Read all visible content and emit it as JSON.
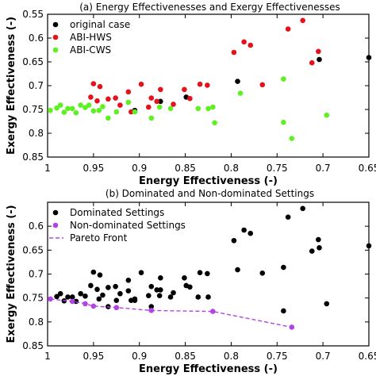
{
  "chart_data": [
    {
      "type": "scatter",
      "title": "(a) Energy Effectivenesses and Exergy Effectivenesses",
      "xlabel": "Energy Effectiveness (-)",
      "ylabel": "Exergy Effectiveness (-)",
      "xlim": [
        1.0,
        0.65
      ],
      "ylim": [
        0.85,
        0.55
      ],
      "x_reversed": true,
      "y_reversed": true,
      "xticks": [
        1,
        0.95,
        0.9,
        0.85,
        0.8,
        0.75,
        0.7,
        0.65
      ],
      "xtick_labels": [
        "1",
        "0.95",
        "0.9",
        "0.85",
        "0.8",
        "0.75",
        "0.7",
        "0.65"
      ],
      "yticks": [
        0.55,
        0.6,
        0.65,
        0.7,
        0.75,
        0.8,
        0.85
      ],
      "ytick_labels": [
        "0.55",
        "0.6",
        "0.65",
        "0.7",
        "0.75",
        "0.8",
        "0.85"
      ],
      "grid": false,
      "legend_position": "top-left",
      "series": [
        {
          "name": "original case",
          "color": "#000000",
          "points": [
            [
              0.905,
              0.752
            ],
            [
              0.877,
              0.733
            ],
            [
              0.849,
              0.724
            ],
            [
              0.793,
              0.691
            ],
            [
              0.704,
              0.645
            ],
            [
              0.65,
              0.641
            ]
          ]
        },
        {
          "name": "ABI-HWS",
          "color": "#e3121b",
          "points": [
            [
              0.953,
              0.724
            ],
            [
              0.95,
              0.696
            ],
            [
              0.946,
              0.732
            ],
            [
              0.943,
              0.702
            ],
            [
              0.934,
              0.728
            ],
            [
              0.926,
              0.726
            ],
            [
              0.921,
              0.741
            ],
            [
              0.912,
              0.713
            ],
            [
              0.909,
              0.755
            ],
            [
              0.898,
              0.697
            ],
            [
              0.89,
              0.745
            ],
            [
              0.887,
              0.726
            ],
            [
              0.881,
              0.733
            ],
            [
              0.877,
              0.708
            ],
            [
              0.863,
              0.739
            ],
            [
              0.851,
              0.708
            ],
            [
              0.845,
              0.727
            ],
            [
              0.834,
              0.697
            ],
            [
              0.826,
              0.699
            ],
            [
              0.797,
              0.63
            ],
            [
              0.786,
              0.608
            ],
            [
              0.779,
              0.615
            ],
            [
              0.766,
              0.698
            ],
            [
              0.738,
              0.581
            ],
            [
              0.722,
              0.563
            ],
            [
              0.712,
              0.652
            ],
            [
              0.705,
              0.628
            ]
          ]
        },
        {
          "name": "ABI-CWS",
          "color": "#5ff022",
          "points": [
            [
              0.997,
              0.752
            ],
            [
              0.99,
              0.747
            ],
            [
              0.986,
              0.741
            ],
            [
              0.982,
              0.756
            ],
            [
              0.978,
              0.748
            ],
            [
              0.973,
              0.748
            ],
            [
              0.969,
              0.757
            ],
            [
              0.964,
              0.741
            ],
            [
              0.959,
              0.746
            ],
            [
              0.955,
              0.741
            ],
            [
              0.95,
              0.753
            ],
            [
              0.944,
              0.752
            ],
            [
              0.94,
              0.744
            ],
            [
              0.934,
              0.768
            ],
            [
              0.925,
              0.755
            ],
            [
              0.912,
              0.735
            ],
            [
              0.905,
              0.755
            ],
            [
              0.887,
              0.768
            ],
            [
              0.878,
              0.745
            ],
            [
              0.866,
              0.748
            ],
            [
              0.836,
              0.748
            ],
            [
              0.825,
              0.748
            ],
            [
              0.82,
              0.745
            ],
            [
              0.818,
              0.778
            ],
            [
              0.79,
              0.716
            ],
            [
              0.743,
              0.686
            ],
            [
              0.743,
              0.777
            ],
            [
              0.734,
              0.811
            ],
            [
              0.696,
              0.762
            ]
          ]
        }
      ]
    },
    {
      "type": "scatter",
      "title": "(b) Dominated and Non-dominated Settings",
      "xlabel": "Energy Effectiveness (-)",
      "ylabel": "Exergy Effectiveness (-)",
      "xlim": [
        1.0,
        0.65
      ],
      "ylim": [
        0.85,
        0.55
      ],
      "x_reversed": true,
      "y_reversed": true,
      "xticks": [
        1,
        0.95,
        0.9,
        0.85,
        0.8,
        0.75,
        0.7,
        0.65
      ],
      "xtick_labels": [
        "1",
        "0.95",
        "0.9",
        "0.85",
        "0.8",
        "0.75",
        "0.7",
        "0.65"
      ],
      "yticks": [
        0.6,
        0.65,
        0.7,
        0.75,
        0.8,
        0.85
      ],
      "ytick_labels": [
        "0.6",
        "0.65",
        "0.7",
        "0.75",
        "0.8",
        "0.85"
      ],
      "grid": false,
      "legend_position": "top-left",
      "series": [
        {
          "name": "Dominated Settings",
          "color": "#000000",
          "points": [
            [
              0.99,
              0.747
            ],
            [
              0.986,
              0.741
            ],
            [
              0.982,
              0.756
            ],
            [
              0.978,
              0.748
            ],
            [
              0.973,
              0.748
            ],
            [
              0.969,
              0.757
            ],
            [
              0.964,
              0.741
            ],
            [
              0.959,
              0.746
            ],
            [
              0.953,
              0.724
            ],
            [
              0.95,
              0.696
            ],
            [
              0.946,
              0.732
            ],
            [
              0.944,
              0.752
            ],
            [
              0.943,
              0.702
            ],
            [
              0.94,
              0.744
            ],
            [
              0.934,
              0.728
            ],
            [
              0.934,
              0.768
            ],
            [
              0.926,
              0.726
            ],
            [
              0.925,
              0.755
            ],
            [
              0.921,
              0.741
            ],
            [
              0.912,
              0.713
            ],
            [
              0.912,
              0.735
            ],
            [
              0.909,
              0.755
            ],
            [
              0.905,
              0.752
            ],
            [
              0.905,
              0.755
            ],
            [
              0.898,
              0.697
            ],
            [
              0.89,
              0.745
            ],
            [
              0.887,
              0.726
            ],
            [
              0.887,
              0.768
            ],
            [
              0.881,
              0.733
            ],
            [
              0.878,
              0.745
            ],
            [
              0.877,
              0.708
            ],
            [
              0.877,
              0.733
            ],
            [
              0.866,
              0.748
            ],
            [
              0.863,
              0.739
            ],
            [
              0.851,
              0.708
            ],
            [
              0.849,
              0.724
            ],
            [
              0.845,
              0.727
            ],
            [
              0.836,
              0.748
            ],
            [
              0.834,
              0.697
            ],
            [
              0.826,
              0.699
            ],
            [
              0.825,
              0.748
            ],
            [
              0.797,
              0.63
            ],
            [
              0.793,
              0.691
            ],
            [
              0.786,
              0.608
            ],
            [
              0.779,
              0.615
            ],
            [
              0.766,
              0.698
            ],
            [
              0.743,
              0.686
            ],
            [
              0.743,
              0.777
            ],
            [
              0.738,
              0.581
            ],
            [
              0.722,
              0.563
            ],
            [
              0.712,
              0.652
            ],
            [
              0.705,
              0.628
            ],
            [
              0.704,
              0.645
            ],
            [
              0.696,
              0.762
            ],
            [
              0.65,
              0.641
            ]
          ]
        },
        {
          "name": "Non-dominated Settings",
          "color": "#b243e6",
          "points": [
            [
              0.997,
              0.752
            ],
            [
              0.973,
              0.757
            ],
            [
              0.959,
              0.762
            ],
            [
              0.95,
              0.767
            ],
            [
              0.925,
              0.77
            ],
            [
              0.887,
              0.776
            ],
            [
              0.82,
              0.778
            ],
            [
              0.734,
              0.811
            ]
          ]
        },
        {
          "name": "Pareto Front",
          "color": "#b243e6",
          "line": "dashed",
          "points": [
            [
              0.997,
              0.752
            ],
            [
              0.973,
              0.757
            ],
            [
              0.959,
              0.762
            ],
            [
              0.95,
              0.767
            ],
            [
              0.925,
              0.77
            ],
            [
              0.887,
              0.776
            ],
            [
              0.82,
              0.778
            ],
            [
              0.734,
              0.811
            ]
          ]
        }
      ]
    }
  ]
}
